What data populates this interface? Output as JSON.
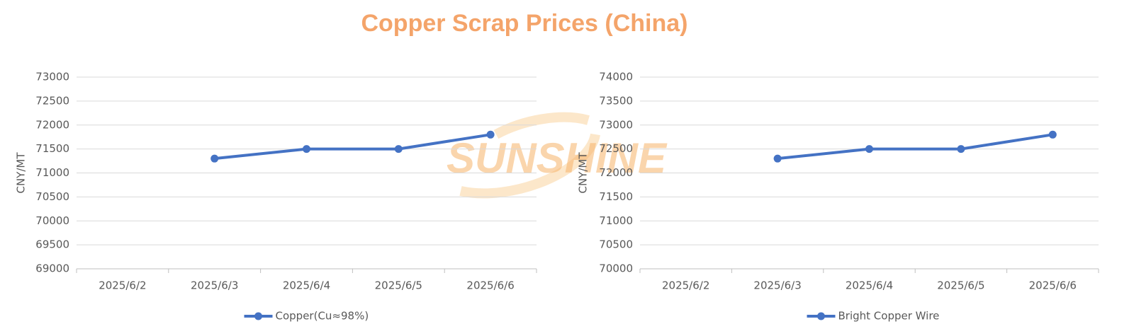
{
  "title": "Copper Scrap Prices (China)",
  "watermark": "SUNSHINE",
  "chart_data": [
    {
      "type": "line",
      "y_label": "CNY/MT",
      "categories": [
        "2025/6/2",
        "2025/6/3",
        "2025/6/4",
        "2025/6/5",
        "2025/6/6"
      ],
      "series": [
        {
          "name": "Copper(Cu≈98%)",
          "color": "#4472c4",
          "values": [
            null,
            71300,
            71500,
            71500,
            71800
          ]
        }
      ],
      "ylim": [
        69000,
        73000
      ],
      "yticks": [
        69000,
        69500,
        70000,
        70500,
        71000,
        71500,
        72000,
        72500,
        73000
      ],
      "grid": true,
      "legend": "bottom"
    },
    {
      "type": "line",
      "y_label": "CNY/MT",
      "categories": [
        "2025/6/2",
        "2025/6/3",
        "2025/6/4",
        "2025/6/5",
        "2025/6/6"
      ],
      "series": [
        {
          "name": "Bright Copper Wire",
          "color": "#4472c4",
          "values": [
            null,
            72300,
            72500,
            72500,
            72800
          ]
        }
      ],
      "ylim": [
        70000,
        74000
      ],
      "yticks": [
        70000,
        70500,
        71000,
        71500,
        72000,
        72500,
        73000,
        73500,
        74000
      ],
      "grid": true,
      "legend": "bottom"
    }
  ]
}
